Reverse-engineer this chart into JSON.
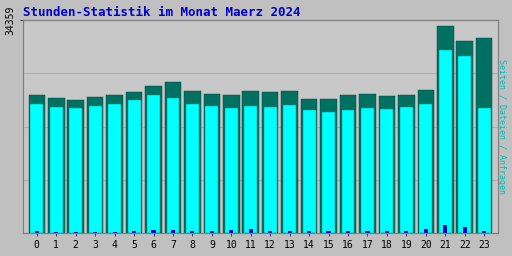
{
  "title": "Stunden-Statistik im Monat Maerz 2024",
  "ylabel_right": "Seiten / Dateien / Anfragen",
  "xlabel_values": [
    0,
    1,
    2,
    3,
    4,
    5,
    6,
    7,
    8,
    9,
    10,
    11,
    12,
    13,
    14,
    15,
    16,
    17,
    18,
    19,
    20,
    21,
    22,
    23
  ],
  "y_max_label": "34359",
  "y_max": 34359,
  "pages": [
    22200,
    21800,
    21400,
    22000,
    22300,
    22700,
    23800,
    24400,
    23000,
    22400,
    22300,
    22900,
    22800,
    23000,
    21700,
    21700,
    22200,
    22400,
    22100,
    22300,
    23100,
    33500,
    31000,
    31500
  ],
  "files": [
    20800,
    20300,
    20100,
    20500,
    20800,
    21500,
    22300,
    21800,
    20800,
    20500,
    20100,
    20500,
    20300,
    20600,
    19800,
    19600,
    19900,
    20200,
    20000,
    20300,
    20800,
    29500,
    28500,
    20100
  ],
  "hits": [
    350,
    200,
    180,
    180,
    180,
    320,
    500,
    500,
    350,
    350,
    500,
    650,
    350,
    350,
    350,
    350,
    350,
    350,
    350,
    350,
    650,
    1200,
    900,
    350
  ],
  "color_pages": "#007060",
  "color_files": "#00FFFF",
  "color_hits": "#0000CC",
  "bg_color": "#C0C0C0",
  "plot_bg": "#C8C8C8",
  "title_color": "#0000CC",
  "ylabel_right_color": "#00BBBB",
  "grid_color": "#B0B0B0",
  "border_color": "#808080"
}
